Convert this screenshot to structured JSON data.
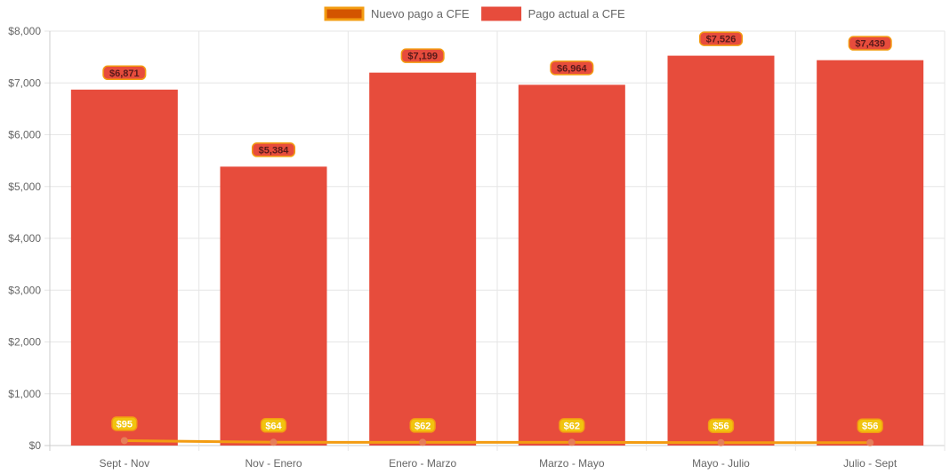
{
  "chart_data": {
    "type": "bar",
    "categories": [
      "Sept - Nov",
      "Nov - Enero",
      "Enero - Marzo",
      "Marzo - Mayo",
      "Mayo - Julio",
      "Julio - Sept"
    ],
    "series": [
      {
        "name": "Nuevo pago a CFE",
        "kind": "line",
        "values": [
          95,
          64,
          62,
          62,
          56,
          56
        ],
        "value_labels": [
          "$95",
          "$64",
          "$62",
          "$62",
          "$56",
          "$56"
        ],
        "color": "#f39c12",
        "point_color": "#e67e5a",
        "legend_swatch_fill": "#d35400",
        "legend_swatch_border": "#f39c12"
      },
      {
        "name": "Pago actual a CFE",
        "kind": "bar",
        "values": [
          6871,
          5384,
          7199,
          6964,
          7526,
          7439
        ],
        "value_labels": [
          "$6,871",
          "$5,384",
          "$7,199",
          "$6,964",
          "$7,526",
          "$7,439"
        ],
        "color": "#e74c3c"
      }
    ],
    "y_ticks": [
      "$0",
      "$1,000",
      "$2,000",
      "$3,000",
      "$4,000",
      "$5,000",
      "$6,000",
      "$7,000",
      "$8,000"
    ],
    "ylim": [
      0,
      8000
    ],
    "title": "",
    "xlabel": "",
    "ylabel": "",
    "grid": true,
    "legend_position": "top-center",
    "colors": {
      "grid": "#e6e6e6",
      "axis": "#cccccc",
      "label_badge_line": "#f1c40f",
      "label_badge_bar_text": "#5a1a1a",
      "label_badge_line_text": "#ffffff"
    }
  }
}
